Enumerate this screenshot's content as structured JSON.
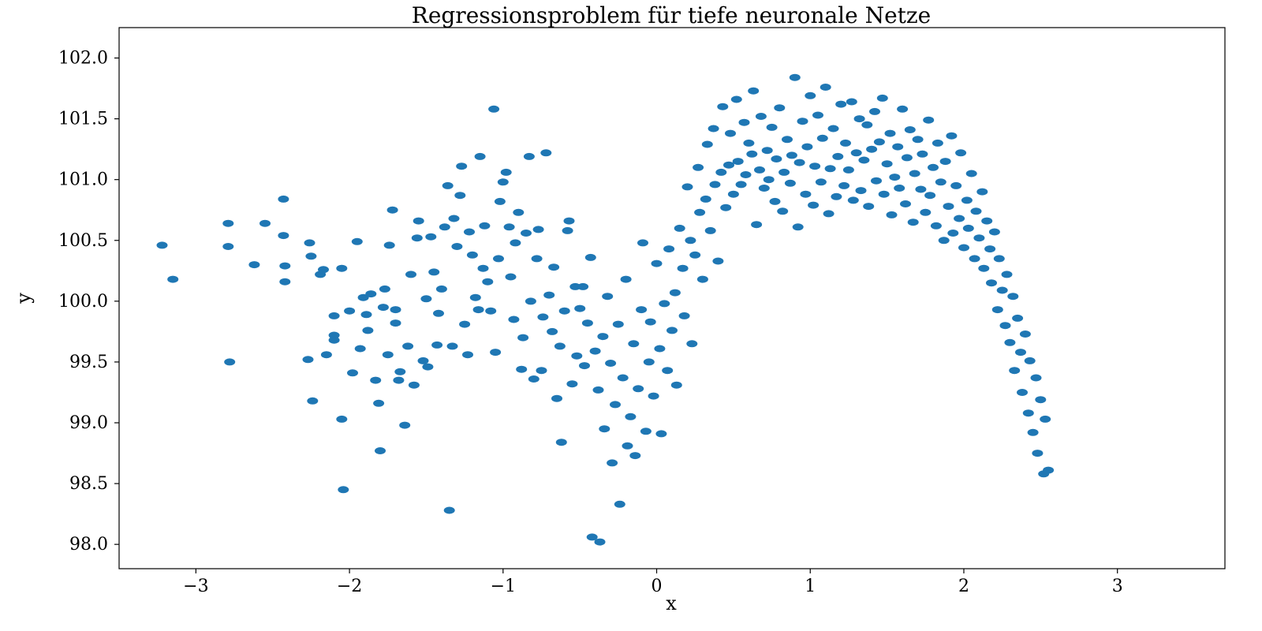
{
  "chart_data": {
    "type": "scatter",
    "title": "Regressionsproblem für tiefe neuronale Netze",
    "xlabel": "x",
    "ylabel": "y",
    "xlim": [
      -3.5,
      3.7
    ],
    "ylim": [
      97.8,
      102.25
    ],
    "xticks": [
      -3,
      -2,
      -1,
      0,
      1,
      2,
      3
    ],
    "xtick_labels": [
      "−3",
      "−2",
      "−1",
      "0",
      "1",
      "2",
      "3"
    ],
    "yticks": [
      98.0,
      98.5,
      99.0,
      99.5,
      100.0,
      100.5,
      101.0,
      101.5,
      102.0
    ],
    "ytick_labels": [
      "98.0",
      "98.5",
      "99.0",
      "99.5",
      "100.0",
      "100.5",
      "101.0",
      "101.5",
      "102.0"
    ],
    "grid": false,
    "marker_color": "#1f77b4",
    "series": [
      {
        "points": [
          [
            -3.22,
            100.46
          ],
          [
            -3.15,
            100.18
          ],
          [
            -2.79,
            100.64
          ],
          [
            -2.79,
            100.45
          ],
          [
            -2.78,
            99.5
          ],
          [
            -2.62,
            100.3
          ],
          [
            -2.55,
            100.64
          ],
          [
            -2.43,
            100.84
          ],
          [
            -2.43,
            100.54
          ],
          [
            -2.42,
            100.29
          ],
          [
            -2.42,
            100.16
          ],
          [
            -2.26,
            100.48
          ],
          [
            -2.25,
            100.37
          ],
          [
            -2.27,
            99.52
          ],
          [
            -2.24,
            99.18
          ],
          [
            -2.17,
            100.26
          ],
          [
            -2.19,
            100.22
          ],
          [
            -2.15,
            99.56
          ],
          [
            -2.1,
            99.72
          ],
          [
            -2.1,
            99.68
          ],
          [
            -2.1,
            99.88
          ],
          [
            -2.05,
            100.27
          ],
          [
            -2.05,
            99.03
          ],
          [
            -2.04,
            98.45
          ],
          [
            -2.0,
            99.92
          ],
          [
            -1.98,
            99.41
          ],
          [
            -1.95,
            100.49
          ],
          [
            -1.93,
            99.61
          ],
          [
            -1.91,
            100.03
          ],
          [
            -1.89,
            99.89
          ],
          [
            -1.88,
            99.76
          ],
          [
            -1.86,
            100.06
          ],
          [
            -1.83,
            99.35
          ],
          [
            -1.81,
            99.16
          ],
          [
            -1.8,
            98.77
          ],
          [
            -1.78,
            99.95
          ],
          [
            -1.77,
            100.1
          ],
          [
            -1.75,
            99.56
          ],
          [
            -1.74,
            100.46
          ],
          [
            -1.72,
            100.75
          ],
          [
            -1.7,
            99.82
          ],
          [
            -1.7,
            99.93
          ],
          [
            -1.68,
            99.35
          ],
          [
            -1.67,
            99.42
          ],
          [
            -1.64,
            98.98
          ],
          [
            -1.62,
            99.63
          ],
          [
            -1.6,
            100.22
          ],
          [
            -1.58,
            99.31
          ],
          [
            -1.56,
            100.52
          ],
          [
            -1.55,
            100.66
          ],
          [
            -1.52,
            99.51
          ],
          [
            -1.5,
            100.02
          ],
          [
            -1.49,
            99.46
          ],
          [
            -1.47,
            100.53
          ],
          [
            -1.45,
            100.24
          ],
          [
            -1.43,
            99.64
          ],
          [
            -1.42,
            99.9
          ],
          [
            -1.4,
            100.1
          ],
          [
            -1.38,
            100.61
          ],
          [
            -1.36,
            100.95
          ],
          [
            -1.35,
            98.28
          ],
          [
            -1.33,
            99.63
          ],
          [
            -1.32,
            100.68
          ],
          [
            -1.3,
            100.45
          ],
          [
            -1.28,
            100.87
          ],
          [
            -1.27,
            101.11
          ],
          [
            -1.25,
            99.81
          ],
          [
            -1.23,
            99.56
          ],
          [
            -1.22,
            100.57
          ],
          [
            -1.2,
            100.38
          ],
          [
            -1.18,
            100.03
          ],
          [
            -1.16,
            99.93
          ],
          [
            -1.15,
            101.19
          ],
          [
            -1.13,
            100.27
          ],
          [
            -1.12,
            100.62
          ],
          [
            -1.1,
            100.16
          ],
          [
            -1.08,
            99.92
          ],
          [
            -1.06,
            101.58
          ],
          [
            -1.05,
            99.58
          ],
          [
            -1.03,
            100.35
          ],
          [
            -1.02,
            100.82
          ],
          [
            -1.0,
            100.98
          ],
          [
            -0.98,
            101.06
          ],
          [
            -0.96,
            100.61
          ],
          [
            -0.95,
            100.2
          ],
          [
            -0.93,
            99.85
          ],
          [
            -0.92,
            100.48
          ],
          [
            -0.9,
            100.73
          ],
          [
            -0.88,
            99.44
          ],
          [
            -0.87,
            99.7
          ],
          [
            -0.85,
            100.56
          ],
          [
            -0.83,
            101.19
          ],
          [
            -0.82,
            100.0
          ],
          [
            -0.8,
            99.36
          ],
          [
            -0.78,
            100.35
          ],
          [
            -0.77,
            100.59
          ],
          [
            -0.75,
            99.43
          ],
          [
            -0.74,
            99.87
          ],
          [
            -0.72,
            101.22
          ],
          [
            -0.7,
            100.05
          ],
          [
            -0.68,
            99.75
          ],
          [
            -0.67,
            100.28
          ],
          [
            -0.65,
            99.2
          ],
          [
            -0.63,
            99.63
          ],
          [
            -0.62,
            98.84
          ],
          [
            -0.6,
            99.92
          ],
          [
            -0.58,
            100.58
          ],
          [
            -0.57,
            100.66
          ],
          [
            -0.55,
            99.32
          ],
          [
            -0.53,
            100.12
          ],
          [
            -0.52,
            99.55
          ],
          [
            -0.5,
            99.94
          ],
          [
            -0.48,
            100.12
          ],
          [
            -0.47,
            99.47
          ],
          [
            -0.45,
            99.82
          ],
          [
            -0.43,
            100.36
          ],
          [
            -0.42,
            98.06
          ],
          [
            -0.4,
            99.59
          ],
          [
            -0.38,
            99.27
          ],
          [
            -0.37,
            98.02
          ],
          [
            -0.35,
            99.71
          ],
          [
            -0.34,
            98.95
          ],
          [
            -0.32,
            100.04
          ],
          [
            -0.3,
            99.49
          ],
          [
            -0.29,
            98.67
          ],
          [
            -0.27,
            99.15
          ],
          [
            -0.25,
            99.81
          ],
          [
            -0.24,
            98.33
          ],
          [
            -0.22,
            99.37
          ],
          [
            -0.2,
            100.18
          ],
          [
            -0.19,
            98.81
          ],
          [
            -0.17,
            99.05
          ],
          [
            -0.15,
            99.65
          ],
          [
            -0.14,
            98.73
          ],
          [
            -0.12,
            99.28
          ],
          [
            -0.1,
            99.93
          ],
          [
            -0.09,
            100.48
          ],
          [
            -0.07,
            98.93
          ],
          [
            -0.05,
            99.5
          ],
          [
            -0.04,
            99.83
          ],
          [
            -0.02,
            99.22
          ],
          [
            0.0,
            100.31
          ],
          [
            0.02,
            99.61
          ],
          [
            0.03,
            98.91
          ],
          [
            0.05,
            99.98
          ],
          [
            0.07,
            99.43
          ],
          [
            0.08,
            100.43
          ],
          [
            0.1,
            99.76
          ],
          [
            0.12,
            100.07
          ],
          [
            0.13,
            99.31
          ],
          [
            0.15,
            100.6
          ],
          [
            0.17,
            100.27
          ],
          [
            0.18,
            99.88
          ],
          [
            0.2,
            100.94
          ],
          [
            0.22,
            100.5
          ],
          [
            0.23,
            99.65
          ],
          [
            0.25,
            100.38
          ],
          [
            0.27,
            101.1
          ],
          [
            0.28,
            100.73
          ],
          [
            0.3,
            100.18
          ],
          [
            0.32,
            100.84
          ],
          [
            0.33,
            101.29
          ],
          [
            0.35,
            100.58
          ],
          [
            0.37,
            101.42
          ],
          [
            0.38,
            100.96
          ],
          [
            0.4,
            100.33
          ],
          [
            0.42,
            101.06
          ],
          [
            0.43,
            101.6
          ],
          [
            0.45,
            100.77
          ],
          [
            0.47,
            101.12
          ],
          [
            0.48,
            101.38
          ],
          [
            0.5,
            100.88
          ],
          [
            0.52,
            101.66
          ],
          [
            0.53,
            101.15
          ],
          [
            0.55,
            100.96
          ],
          [
            0.57,
            101.47
          ],
          [
            0.58,
            101.04
          ],
          [
            0.6,
            101.3
          ],
          [
            0.62,
            101.21
          ],
          [
            0.63,
            101.73
          ],
          [
            0.65,
            100.63
          ],
          [
            0.67,
            101.08
          ],
          [
            0.68,
            101.52
          ],
          [
            0.7,
            100.93
          ],
          [
            0.72,
            101.24
          ],
          [
            0.73,
            101.0
          ],
          [
            0.75,
            101.43
          ],
          [
            0.77,
            100.82
          ],
          [
            0.78,
            101.17
          ],
          [
            0.8,
            101.59
          ],
          [
            0.82,
            100.74
          ],
          [
            0.83,
            101.06
          ],
          [
            0.85,
            101.33
          ],
          [
            0.87,
            100.97
          ],
          [
            0.88,
            101.2
          ],
          [
            0.9,
            101.84
          ],
          [
            0.92,
            100.61
          ],
          [
            0.93,
            101.14
          ],
          [
            0.95,
            101.48
          ],
          [
            0.97,
            100.88
          ],
          [
            0.98,
            101.27
          ],
          [
            1.0,
            101.69
          ],
          [
            1.02,
            100.79
          ],
          [
            1.03,
            101.11
          ],
          [
            1.05,
            101.53
          ],
          [
            1.07,
            100.98
          ],
          [
            1.08,
            101.34
          ],
          [
            1.1,
            101.76
          ],
          [
            1.12,
            100.72
          ],
          [
            1.13,
            101.09
          ],
          [
            1.15,
            101.42
          ],
          [
            1.17,
            100.86
          ],
          [
            1.18,
            101.19
          ],
          [
            1.2,
            101.62
          ],
          [
            1.22,
            100.95
          ],
          [
            1.23,
            101.3
          ],
          [
            1.25,
            101.08
          ],
          [
            1.27,
            101.64
          ],
          [
            1.28,
            100.83
          ],
          [
            1.3,
            101.22
          ],
          [
            1.32,
            101.5
          ],
          [
            1.33,
            100.91
          ],
          [
            1.35,
            101.16
          ],
          [
            1.37,
            101.45
          ],
          [
            1.38,
            100.78
          ],
          [
            1.4,
            101.25
          ],
          [
            1.42,
            101.56
          ],
          [
            1.43,
            100.99
          ],
          [
            1.45,
            101.31
          ],
          [
            1.47,
            101.67
          ],
          [
            1.48,
            100.88
          ],
          [
            1.5,
            101.13
          ],
          [
            1.52,
            101.38
          ],
          [
            1.53,
            100.71
          ],
          [
            1.55,
            101.02
          ],
          [
            1.57,
            101.27
          ],
          [
            1.58,
            100.93
          ],
          [
            1.6,
            101.58
          ],
          [
            1.62,
            100.8
          ],
          [
            1.63,
            101.18
          ],
          [
            1.65,
            101.41
          ],
          [
            1.67,
            100.65
          ],
          [
            1.68,
            101.05
          ],
          [
            1.7,
            101.33
          ],
          [
            1.72,
            100.92
          ],
          [
            1.73,
            101.21
          ],
          [
            1.75,
            100.73
          ],
          [
            1.77,
            101.49
          ],
          [
            1.78,
            100.87
          ],
          [
            1.8,
            101.1
          ],
          [
            1.82,
            100.62
          ],
          [
            1.83,
            101.3
          ],
          [
            1.85,
            100.98
          ],
          [
            1.87,
            100.5
          ],
          [
            1.88,
            101.15
          ],
          [
            1.9,
            100.78
          ],
          [
            1.92,
            101.36
          ],
          [
            1.93,
            100.56
          ],
          [
            1.95,
            100.95
          ],
          [
            1.97,
            100.68
          ],
          [
            1.98,
            101.22
          ],
          [
            2.0,
            100.44
          ],
          [
            2.02,
            100.83
          ],
          [
            2.03,
            100.6
          ],
          [
            2.05,
            101.05
          ],
          [
            2.07,
            100.35
          ],
          [
            2.08,
            100.74
          ],
          [
            2.1,
            100.52
          ],
          [
            2.12,
            100.9
          ],
          [
            2.13,
            100.27
          ],
          [
            2.15,
            100.66
          ],
          [
            2.17,
            100.43
          ],
          [
            2.18,
            100.15
          ],
          [
            2.2,
            100.57
          ],
          [
            2.22,
            99.93
          ],
          [
            2.23,
            100.35
          ],
          [
            2.25,
            100.09
          ],
          [
            2.27,
            99.8
          ],
          [
            2.28,
            100.22
          ],
          [
            2.3,
            99.66
          ],
          [
            2.32,
            100.04
          ],
          [
            2.33,
            99.43
          ],
          [
            2.35,
            99.86
          ],
          [
            2.37,
            99.58
          ],
          [
            2.38,
            99.25
          ],
          [
            2.4,
            99.73
          ],
          [
            2.42,
            99.08
          ],
          [
            2.43,
            99.51
          ],
          [
            2.45,
            98.92
          ],
          [
            2.47,
            99.37
          ],
          [
            2.48,
            98.75
          ],
          [
            2.5,
            99.19
          ],
          [
            2.52,
            98.58
          ],
          [
            2.53,
            99.03
          ],
          [
            2.55,
            98.61
          ]
        ]
      }
    ]
  }
}
